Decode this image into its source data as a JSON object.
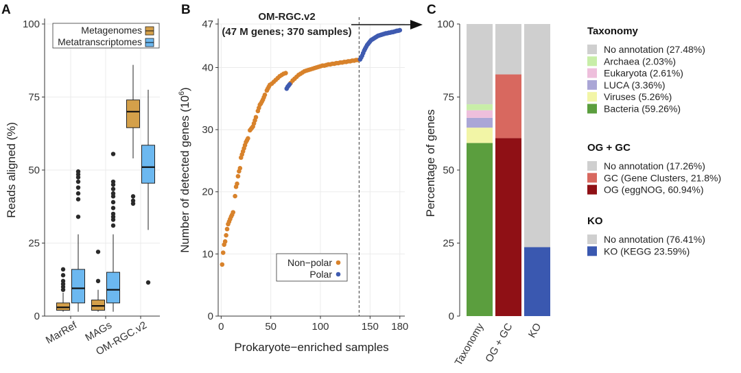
{
  "chart_data": [
    {
      "panel": "A",
      "type": "box",
      "ylabel": "Reads aligned (%)",
      "ylim": [
        0,
        100
      ],
      "yticks": [
        0,
        25,
        50,
        75,
        100
      ],
      "categories": [
        "MarRef",
        "MAGs",
        "OM-RGC.v2"
      ],
      "legend": [
        {
          "name": "Metagenomes",
          "color": "#d4a04a"
        },
        {
          "name": "Metatranscriptomes",
          "color": "#6cb8f0"
        }
      ],
      "groups": [
        {
          "category": "MarRef",
          "metagenomes": {
            "min": 1.5,
            "q1": 2,
            "median": 3,
            "q3": 4.5,
            "max": 8,
            "outliers": [
              9,
              10,
              11,
              12,
              14,
              16
            ]
          },
          "metatranscriptomes": {
            "min": 1.5,
            "q1": 4.5,
            "median": 9.5,
            "q3": 16,
            "max": 28,
            "outliers": [
              34,
              40,
              42,
              44,
              46,
              47.5,
              48.5,
              49.5
            ]
          }
        },
        {
          "category": "MAGs",
          "metagenomes": {
            "min": 1.5,
            "q1": 2,
            "median": 3.5,
            "q3": 5.5,
            "max": 9,
            "outliers": [
              12,
              22
            ]
          },
          "metatranscriptomes": {
            "min": 1.5,
            "q1": 4.5,
            "median": 9,
            "q3": 15,
            "max": 28,
            "outliers": [
              31,
              33,
              34,
              35,
              37,
              39,
              41,
              42,
              43.5,
              45,
              46,
              55.5
            ]
          }
        },
        {
          "category": "OM-RGC.v2",
          "metagenomes": {
            "min": 54,
            "q1": 64.5,
            "median": 70,
            "q3": 74,
            "max": 86,
            "outliers": []
          },
          "metatranscriptomes": {
            "min": 29.5,
            "q1": 45.5,
            "median": 51,
            "q3": 58.5,
            "max": 77.5,
            "outliers": [
              11.5,
              38.5,
              39.5,
              41
            ]
          }
        }
      ],
      "side_outliers": [
        38.5,
        39.5,
        41
      ]
    },
    {
      "panel": "B",
      "type": "scatter",
      "title_line1": "OM-RGC.v2",
      "title_line2": "(47 M genes; 370 samples)",
      "xlabel": "Prokaryote−enriched samples",
      "ylabel_base": "Number of detected genes (10",
      "ylabel_sup": "6",
      "ylabel_close": ")",
      "xlim": [
        -3,
        185
      ],
      "ylim": [
        0,
        47
      ],
      "xticks": [
        0,
        50,
        100,
        150,
        180
      ],
      "yticks": [
        0,
        10,
        20,
        30,
        40,
        47
      ],
      "vline_x": 139,
      "series": [
        {
          "name": "Non−polar",
          "color": "#d8822b",
          "points": [
            [
              1,
              8.3
            ],
            [
              2,
              10.2
            ],
            [
              3,
              11.5
            ],
            [
              4,
              12.0
            ],
            [
              5,
              13.0
            ],
            [
              6,
              14.0
            ],
            [
              7,
              14.8
            ],
            [
              8,
              15.2
            ],
            [
              9,
              15.6
            ],
            [
              10,
              16.0
            ],
            [
              11,
              16.3
            ],
            [
              12,
              16.7
            ],
            [
              14,
              19.3
            ],
            [
              15,
              20.8
            ],
            [
              16,
              21.3
            ],
            [
              17,
              22.5
            ],
            [
              18,
              23.3
            ],
            [
              19,
              23.8
            ],
            [
              20,
              25.5
            ],
            [
              21,
              26.0
            ],
            [
              22,
              26.5
            ],
            [
              23,
              27.0
            ],
            [
              24,
              27.5
            ],
            [
              25,
              28.0
            ],
            [
              26,
              28.3
            ],
            [
              27,
              28.6
            ],
            [
              29,
              29.9
            ],
            [
              30,
              30.1
            ],
            [
              31,
              30.3
            ],
            [
              32,
              30.5
            ],
            [
              33,
              31.0
            ],
            [
              34,
              31.5
            ],
            [
              35,
              32.0
            ],
            [
              37,
              33.0
            ],
            [
              38,
              33.5
            ],
            [
              39,
              34.0
            ],
            [
              40,
              34.2
            ],
            [
              41,
              34.5
            ],
            [
              42,
              34.8
            ],
            [
              43,
              35.2
            ],
            [
              44,
              35.6
            ],
            [
              46,
              36.3
            ],
            [
              47,
              36.6
            ],
            [
              48,
              36.9
            ],
            [
              49,
              37.2
            ],
            [
              51,
              37.4
            ],
            [
              53,
              37.7
            ],
            [
              55,
              38.0
            ],
            [
              57,
              38.3
            ],
            [
              59,
              38.6
            ],
            [
              61,
              38.8
            ],
            [
              63,
              39.0
            ],
            [
              65,
              39.1
            ],
            [
              70,
              37.5
            ],
            [
              72,
              37.9
            ],
            [
              74,
              38.2
            ],
            [
              76,
              38.5
            ],
            [
              78,
              38.8
            ],
            [
              80,
              39.0
            ],
            [
              82,
              39.2
            ],
            [
              84,
              39.4
            ],
            [
              86,
              39.5
            ],
            [
              88,
              39.6
            ],
            [
              90,
              39.7
            ],
            [
              92,
              39.8
            ],
            [
              94,
              39.9
            ],
            [
              96,
              40.0
            ],
            [
              98,
              40.1
            ],
            [
              100,
              40.2
            ],
            [
              102,
              40.3
            ],
            [
              104,
              40.3
            ],
            [
              106,
              40.4
            ],
            [
              108,
              40.5
            ],
            [
              110,
              40.5
            ],
            [
              112,
              40.6
            ],
            [
              114,
              40.6
            ],
            [
              116,
              40.7
            ],
            [
              118,
              40.7
            ],
            [
              120,
              40.8
            ],
            [
              122,
              40.8
            ],
            [
              124,
              40.9
            ],
            [
              126,
              40.9
            ],
            [
              128,
              41.0
            ],
            [
              130,
              41.0
            ],
            [
              132,
              41.1
            ],
            [
              134,
              41.1
            ],
            [
              136,
              41.2
            ],
            [
              138,
              41.2
            ]
          ]
        },
        {
          "name": "Polar",
          "color": "#3f5bb0",
          "points": [
            [
              66,
              36.6
            ],
            [
              67,
              36.9
            ],
            [
              68,
              37.1
            ],
            [
              69,
              37.3
            ],
            [
              140,
              41.3
            ],
            [
              141,
              41.6
            ],
            [
              142,
              41.9
            ],
            [
              143,
              42.3
            ],
            [
              144,
              42.7
            ],
            [
              145,
              43.0
            ],
            [
              146,
              43.3
            ],
            [
              147,
              43.6
            ],
            [
              148,
              43.8
            ],
            [
              149,
              44.0
            ],
            [
              150,
              44.2
            ],
            [
              151,
              44.4
            ],
            [
              152,
              44.5
            ],
            [
              153,
              44.6
            ],
            [
              154,
              44.7
            ],
            [
              155,
              44.8
            ],
            [
              156,
              44.9
            ],
            [
              157,
              45.0
            ],
            [
              158,
              45.1
            ],
            [
              159,
              45.15
            ],
            [
              160,
              45.2
            ],
            [
              161,
              45.25
            ],
            [
              162,
              45.3
            ],
            [
              163,
              45.35
            ],
            [
              164,
              45.4
            ],
            [
              165,
              45.45
            ],
            [
              166,
              45.5
            ],
            [
              167,
              45.5
            ],
            [
              168,
              45.55
            ],
            [
              169,
              45.6
            ],
            [
              170,
              45.6
            ],
            [
              171,
              45.65
            ],
            [
              172,
              45.7
            ],
            [
              173,
              45.7
            ],
            [
              174,
              45.75
            ],
            [
              175,
              45.8
            ],
            [
              176,
              45.85
            ],
            [
              177,
              45.9
            ],
            [
              178,
              45.9
            ],
            [
              179,
              45.95
            ],
            [
              180,
              46.0
            ]
          ]
        }
      ]
    },
    {
      "panel": "C",
      "type": "stacked-bar",
      "ylabel": "Percentage of genes",
      "ylim": [
        0,
        100
      ],
      "yticks": [
        0,
        25,
        50,
        75,
        100
      ],
      "bars": [
        {
          "label": "Taxonomy",
          "segments": [
            {
              "name": "Bacteria",
              "value": 59.26,
              "color": "#5b9e3e"
            },
            {
              "name": "Viruses",
              "value": 5.26,
              "color": "#f2f5a6"
            },
            {
              "name": "LUCA",
              "value": 3.36,
              "color": "#aaa6d6"
            },
            {
              "name": "Eukaryota",
              "value": 2.61,
              "color": "#eebfdc"
            },
            {
              "name": "Archaea",
              "value": 2.03,
              "color": "#c8eea8"
            },
            {
              "name": "No annotation",
              "value": 27.48,
              "color": "#cfcfcf"
            }
          ]
        },
        {
          "label": "OG + GC",
          "segments": [
            {
              "name": "OG",
              "value": 60.94,
              "color": "#8f1015"
            },
            {
              "name": "GC",
              "value": 21.8,
              "color": "#d8685f"
            },
            {
              "name": "No annotation",
              "value": 17.26,
              "color": "#cfcfcf"
            }
          ]
        },
        {
          "label": "KO",
          "segments": [
            {
              "name": "KO (KEGG)",
              "value": 23.59,
              "color": "#3a58b0"
            },
            {
              "name": "No annotation",
              "value": 76.41,
              "color": "#cfcfcf"
            }
          ]
        }
      ],
      "legend_groups": [
        {
          "title": "Taxonomy",
          "items": [
            {
              "label": "No annotation (27.48%)",
              "color": "#cfcfcf"
            },
            {
              "label": "Archaea (2.03%)",
              "color": "#c8eea8"
            },
            {
              "label": "Eukaryota (2.61%)",
              "color": "#eebfdc"
            },
            {
              "label": "LUCA (3.36%)",
              "color": "#aaa6d6"
            },
            {
              "label": "Viruses (5.26%)",
              "color": "#f2f5a6"
            },
            {
              "label": "Bacteria (59.26%)",
              "color": "#5b9e3e"
            }
          ]
        },
        {
          "title": "OG + GC",
          "items": [
            {
              "label": "No annotation (17.26%)",
              "color": "#cfcfcf"
            },
            {
              "label": "GC (Gene Clusters, 21.8%)",
              "color": "#d8685f"
            },
            {
              "label": "OG (eggNOG, 60.94%)",
              "color": "#8f1015"
            }
          ]
        },
        {
          "title": "KO",
          "items": [
            {
              "label": "No annotation (76.41%)",
              "color": "#cfcfcf"
            },
            {
              "label": "KO (KEGG 23.59%)",
              "color": "#3a58b0"
            }
          ]
        }
      ]
    }
  ]
}
